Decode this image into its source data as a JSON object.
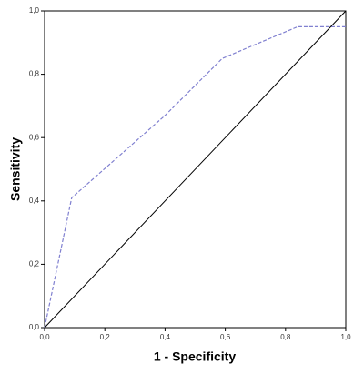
{
  "chart_data": {
    "type": "line",
    "x_label": "1 - Specificity",
    "y_label": "Sensitivity",
    "series": [
      {
        "color": "#8080d0",
        "dashed": true,
        "x": [
          0,
          0.09,
          0.4,
          0.59,
          0.84,
          1.0
        ],
        "values": [
          0,
          0.41,
          0.67,
          0.85,
          0.95,
          0.95
        ]
      },
      {
        "color": "#000000",
        "dashed": false,
        "x": [
          0,
          1.0
        ],
        "values": [
          0,
          1.0
        ]
      }
    ],
    "xlim": [
      0,
      1
    ],
    "ylim": [
      0,
      1
    ],
    "xticks": [
      {
        "value": 0,
        "label": "0,0"
      },
      {
        "value": 0.2,
        "label": "0,2"
      },
      {
        "value": 0.4,
        "label": "0,4"
      },
      {
        "value": 0.6,
        "label": "0,6"
      },
      {
        "value": 0.8,
        "label": "0,8"
      },
      {
        "value": 1.0,
        "label": "1,0"
      }
    ],
    "yticks": [
      {
        "value": 0,
        "label": "0,0"
      },
      {
        "value": 0.2,
        "label": "0,2"
      },
      {
        "value": 0.4,
        "label": "0,4"
      },
      {
        "value": 0.6,
        "label": "0,6"
      },
      {
        "value": 0.8,
        "label": "0,8"
      },
      {
        "value": 1.0,
        "label": "1,0"
      }
    ],
    "grid": false
  }
}
